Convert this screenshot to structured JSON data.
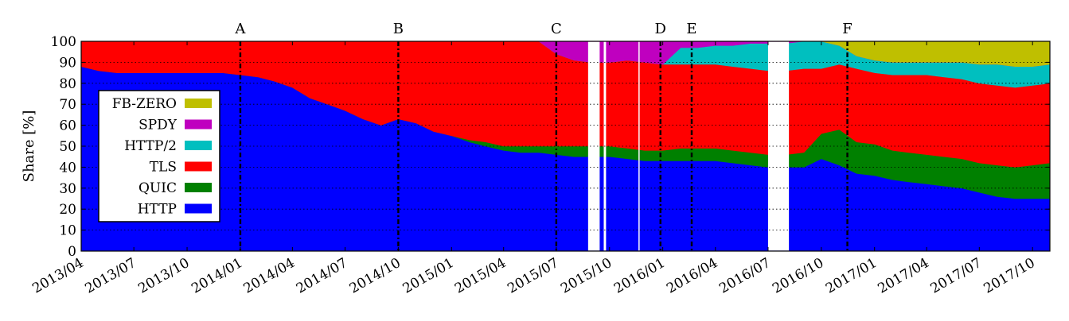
{
  "chart_data": {
    "type": "area",
    "stacked": true,
    "ylabel": "Share [%]",
    "ylim": [
      0,
      100
    ],
    "yticks": [
      0,
      10,
      20,
      30,
      40,
      50,
      60,
      70,
      80,
      90,
      100
    ],
    "grid": "horizontal dotted",
    "legend_position": "left",
    "xlim": [
      "2013-04-01",
      "2017-10-31"
    ],
    "xticks": [
      {
        "date": "2013-04-01",
        "label": "2013/04"
      },
      {
        "date": "2013-07-01",
        "label": "2013/07"
      },
      {
        "date": "2013-10-01",
        "label": "2013/10"
      },
      {
        "date": "2014-01-01",
        "label": "2014/01"
      },
      {
        "date": "2014-04-01",
        "label": "2014/04"
      },
      {
        "date": "2014-07-01",
        "label": "2014/07"
      },
      {
        "date": "2014-10-01",
        "label": "2014/10"
      },
      {
        "date": "2015-01-01",
        "label": "2015/01"
      },
      {
        "date": "2015-04-01",
        "label": "2015/04"
      },
      {
        "date": "2015-07-01",
        "label": "2015/07"
      },
      {
        "date": "2015-10-01",
        "label": "2015/10"
      },
      {
        "date": "2016-01-01",
        "label": "2016/01"
      },
      {
        "date": "2016-04-01",
        "label": "2016/04"
      },
      {
        "date": "2016-07-01",
        "label": "2016/07"
      },
      {
        "date": "2016-10-01",
        "label": "2016/10"
      },
      {
        "date": "2017-01-01",
        "label": "2017/01"
      },
      {
        "date": "2017-04-01",
        "label": "2017/04"
      },
      {
        "date": "2017-07-01",
        "label": "2017/07"
      },
      {
        "date": "2017-10-01",
        "label": "2017/10"
      }
    ],
    "events": [
      {
        "label": "A",
        "date": "2014-01-01"
      },
      {
        "label": "B",
        "date": "2014-10-01"
      },
      {
        "label": "C",
        "date": "2015-07-01"
      },
      {
        "label": "D",
        "date": "2015-12-28"
      },
      {
        "label": "E",
        "date": "2016-02-20"
      },
      {
        "label": "F",
        "date": "2016-11-15"
      }
    ],
    "data_gaps": [
      {
        "from": "2015-08-25",
        "to": "2015-09-14"
      },
      {
        "from": "2015-09-21",
        "to": "2015-09-25"
      },
      {
        "from": "2015-11-20",
        "to": "2015-11-22"
      },
      {
        "from": "2016-07-01",
        "to": "2016-08-06"
      }
    ],
    "dates": [
      "2013-04-01",
      "2013-05-01",
      "2013-06-01",
      "2013-07-01",
      "2013-08-01",
      "2013-09-01",
      "2013-10-01",
      "2013-11-01",
      "2013-12-01",
      "2014-01-01",
      "2014-02-01",
      "2014-03-01",
      "2014-04-01",
      "2014-05-01",
      "2014-06-01",
      "2014-07-01",
      "2014-08-01",
      "2014-09-01",
      "2014-10-01",
      "2014-11-01",
      "2014-12-01",
      "2015-01-01",
      "2015-02-01",
      "2015-03-01",
      "2015-04-01",
      "2015-05-01",
      "2015-06-01",
      "2015-07-01",
      "2015-08-01",
      "2015-09-01",
      "2015-10-01",
      "2015-11-01",
      "2015-12-01",
      "2016-01-01",
      "2016-02-01",
      "2016-03-01",
      "2016-04-01",
      "2016-05-01",
      "2016-06-01",
      "2016-07-01",
      "2016-08-01",
      "2016-09-01",
      "2016-10-01",
      "2016-11-01",
      "2016-12-01",
      "2017-01-01",
      "2017-02-01",
      "2017-03-01",
      "2017-04-01",
      "2017-05-01",
      "2017-06-01",
      "2017-07-01",
      "2017-08-01",
      "2017-09-01",
      "2017-10-01",
      "2017-10-31"
    ],
    "series": [
      {
        "name": "HTTP",
        "color": "#0000ff",
        "values": [
          88,
          86,
          85,
          85,
          85,
          85,
          85,
          85,
          85,
          84,
          83,
          81,
          78,
          73,
          70,
          67,
          63,
          60,
          63,
          61,
          57,
          55,
          52,
          50,
          48,
          47,
          47,
          46,
          45,
          45,
          45,
          44,
          43,
          43,
          43,
          43,
          43,
          42,
          41,
          40,
          40,
          40,
          44,
          41,
          37,
          36,
          34,
          33,
          32,
          31,
          30,
          28,
          26,
          25,
          25,
          25
        ]
      },
      {
        "name": "QUIC",
        "color": "#008000",
        "values": [
          0,
          0,
          0,
          0,
          0,
          0,
          0,
          0,
          0,
          0,
          0,
          0,
          0,
          0,
          0,
          0,
          0,
          0,
          0,
          0,
          0,
          0,
          1,
          2,
          2,
          3,
          3,
          4,
          5,
          5,
          5,
          5,
          5,
          5,
          6,
          6,
          6,
          6,
          6,
          6,
          6,
          7,
          12,
          17,
          15,
          15,
          14,
          14,
          14,
          14,
          14,
          14,
          15,
          15,
          16,
          17
        ]
      },
      {
        "name": "TLS",
        "color": "#ff0000",
        "values": [
          12,
          14,
          15,
          15,
          15,
          15,
          15,
          15,
          15,
          16,
          17,
          19,
          22,
          27,
          30,
          33,
          37,
          40,
          37,
          39,
          43,
          45,
          47,
          48,
          50,
          50,
          50,
          44,
          41,
          40,
          40,
          42,
          42,
          41,
          40,
          40,
          40,
          40,
          40,
          40,
          40,
          40,
          31,
          31,
          35,
          34,
          36,
          37,
          38,
          38,
          38,
          38,
          38,
          38,
          38,
          38
        ]
      },
      {
        "name": "HTTP/2",
        "color": "#00bfbf",
        "values": [
          0,
          0,
          0,
          0,
          0,
          0,
          0,
          0,
          0,
          0,
          0,
          0,
          0,
          0,
          0,
          0,
          0,
          0,
          0,
          0,
          0,
          0,
          0,
          0,
          0,
          0,
          0,
          0,
          0,
          0,
          0,
          0,
          0,
          0,
          8,
          8,
          9,
          10,
          12,
          13,
          13,
          13,
          13,
          9,
          6,
          6,
          6,
          6,
          6,
          7,
          8,
          9,
          10,
          10,
          9,
          9
        ]
      },
      {
        "name": "SPDY",
        "color": "#bf00bf",
        "values": [
          0,
          0,
          0,
          0,
          0,
          0,
          0,
          0,
          0,
          0,
          0,
          0,
          0,
          0,
          0,
          0,
          0,
          0,
          0,
          0,
          0,
          0,
          0,
          0,
          0,
          0,
          0,
          6,
          9,
          10,
          10,
          9,
          10,
          11,
          3,
          3,
          2,
          2,
          1,
          1,
          1,
          0,
          0,
          0,
          0,
          0,
          0,
          0,
          0,
          0,
          0,
          0,
          0,
          0,
          0,
          0
        ]
      },
      {
        "name": "FB-ZERO",
        "color": "#bfbf00",
        "values": [
          0,
          0,
          0,
          0,
          0,
          0,
          0,
          0,
          0,
          0,
          0,
          0,
          0,
          0,
          0,
          0,
          0,
          0,
          0,
          0,
          0,
          0,
          0,
          0,
          0,
          0,
          0,
          0,
          0,
          0,
          0,
          0,
          0,
          0,
          0,
          0,
          0,
          0,
          0,
          0,
          0,
          0,
          0,
          2,
          7,
          9,
          10,
          10,
          10,
          10,
          10,
          11,
          11,
          12,
          12,
          11
        ]
      }
    ],
    "legend_order": [
      "FB-ZERO",
      "SPDY",
      "HTTP/2",
      "TLS",
      "QUIC",
      "HTTP"
    ]
  }
}
